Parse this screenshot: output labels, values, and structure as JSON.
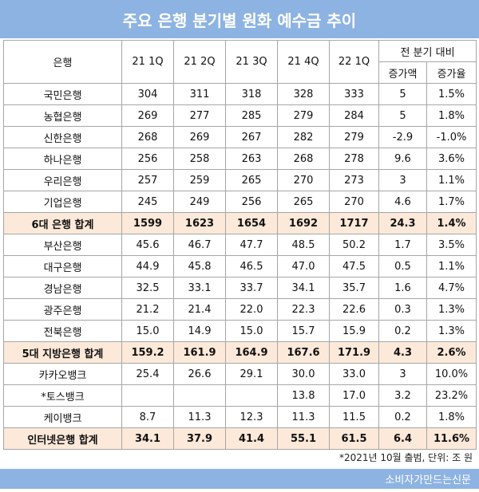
{
  "header": {
    "title": "주요 은행 분기별 원화 예수금 추이"
  },
  "table": {
    "columns": [
      "은행",
      "21 1Q",
      "21 2Q",
      "21 3Q",
      "21 4Q",
      "22 1Q"
    ],
    "change_header": "전 분기 대비",
    "sub_headers": [
      "증가액",
      "증가율"
    ],
    "rows": [
      {
        "cells": [
          "국민은행",
          "304",
          "311",
          "318",
          "328",
          "333",
          "5",
          "1.5%"
        ]
      },
      {
        "cells": [
          "농협은행",
          "269",
          "277",
          "285",
          "279",
          "284",
          "5",
          "1.8%"
        ]
      },
      {
        "cells": [
          "신한은행",
          "268",
          "269",
          "267",
          "282",
          "279",
          "-2.9",
          "-1.0%"
        ]
      },
      {
        "cells": [
          "하나은행",
          "256",
          "258",
          "263",
          "268",
          "278",
          "9.6",
          "3.6%"
        ]
      },
      {
        "cells": [
          "우리은행",
          "257",
          "259",
          "265",
          "270",
          "273",
          "3",
          "1.1%"
        ]
      },
      {
        "cells": [
          "기업은행",
          "245",
          "249",
          "256",
          "265",
          "270",
          "4.6",
          "1.7%"
        ]
      },
      {
        "cells": [
          "6대 은행 합계",
          "1599",
          "1623",
          "1654",
          "1692",
          "1717",
          "24.3",
          "1.4%"
        ],
        "highlight": true
      },
      {
        "cells": [
          "부산은행",
          "45.6",
          "46.7",
          "47.7",
          "48.5",
          "50.2",
          "1.7",
          "3.5%"
        ]
      },
      {
        "cells": [
          "대구은행",
          "44.9",
          "45.8",
          "46.5",
          "47.0",
          "47.5",
          "0.5",
          "1.1%"
        ]
      },
      {
        "cells": [
          "경남은행",
          "32.5",
          "33.1",
          "33.7",
          "34.1",
          "35.7",
          "1.6",
          "4.7%"
        ]
      },
      {
        "cells": [
          "광주은행",
          "21.2",
          "21.4",
          "22.0",
          "22.3",
          "22.6",
          "0.3",
          "1.3%"
        ]
      },
      {
        "cells": [
          "전북은행",
          "15.0",
          "14.9",
          "15.0",
          "15.7",
          "15.9",
          "0.2",
          "1.3%"
        ]
      },
      {
        "cells": [
          "5대 지방은행 합계",
          "159.2",
          "161.9",
          "164.9",
          "167.6",
          "171.9",
          "4.3",
          "2.6%"
        ],
        "highlight": true
      },
      {
        "cells": [
          "카카오뱅크",
          "25.4",
          "26.6",
          "29.1",
          "30.0",
          "33.0",
          "3",
          "10.0%"
        ]
      },
      {
        "cells": [
          "*토스뱅크",
          null,
          null,
          null,
          "13.8",
          "17.0",
          "3.2",
          "23.2%"
        ]
      },
      {
        "cells": [
          "케이뱅크",
          "8.7",
          "11.3",
          "12.3",
          "11.3",
          "11.5",
          "0.2",
          "1.8%"
        ]
      },
      {
        "cells": [
          "인터넷은행 합계",
          "34.1",
          "37.9",
          "41.4",
          "55.1",
          "61.5",
          "6.4",
          "11.6%"
        ],
        "highlight": true
      }
    ]
  },
  "footnote": "*2021년 10월 출범, 단위: 조 원",
  "footer": {
    "source": "소비자가만드는신문"
  }
}
